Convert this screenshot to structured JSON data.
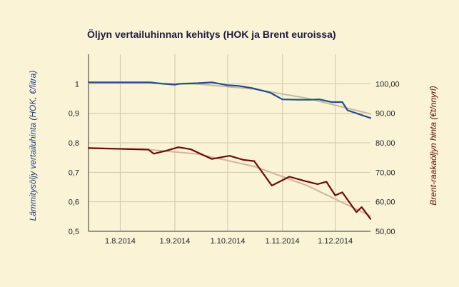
{
  "chart_data": {
    "type": "line",
    "title": "Öljyn vertailuhinnan kehitys (HOK ja Brent euroissa)",
    "x_axis": {
      "type": "date",
      "range": [
        "2014-07-14",
        "2014-12-21"
      ],
      "tick_labels": [
        "1.8.2014",
        "1.9.2014",
        "1.10.2014",
        "1.11.2014",
        "1.12.2014"
      ],
      "tick_dates": [
        "2014-08-01",
        "2014-09-01",
        "2014-10-01",
        "2014-11-01",
        "2014-12-01"
      ],
      "grid": true
    },
    "y_left": {
      "label": "Lämmitysöljy vertailuhinta (HOK, €/litra)",
      "ylim": [
        0.5,
        1.1
      ],
      "ticks": [
        0.5,
        0.6,
        0.7,
        0.8,
        0.9,
        1.0
      ],
      "tick_labels": [
        "0,5",
        "0,6",
        "0,7",
        "0,8",
        "0,9",
        "1"
      ]
    },
    "y_right": {
      "label": "Brent-raakaöljyn hinta (€t/nnyrl)",
      "ylim": [
        50,
        110
      ],
      "ticks": [
        50,
        60,
        70,
        80,
        90,
        100
      ],
      "tick_labels": [
        "50,00",
        "60,00",
        "70,00",
        "80,00",
        "90,00",
        "100,00"
      ]
    },
    "series": [
      {
        "axis": "left",
        "color": "#1f4e8c",
        "points": [
          [
            "2014-07-14",
            1.005
          ],
          [
            "2014-07-21",
            1.005
          ],
          [
            "2014-07-28",
            1.005
          ],
          [
            "2014-08-04",
            1.005
          ],
          [
            "2014-08-11",
            1.005
          ],
          [
            "2014-08-18",
            1.005
          ],
          [
            "2014-08-25",
            1.0
          ],
          [
            "2014-09-01",
            0.997
          ],
          [
            "2014-09-04",
            1.0
          ],
          [
            "2014-09-14",
            1.002
          ],
          [
            "2014-09-22",
            1.005
          ],
          [
            "2014-10-01",
            0.995
          ],
          [
            "2014-10-07",
            0.993
          ],
          [
            "2014-10-15",
            0.985
          ],
          [
            "2014-10-25",
            0.97
          ],
          [
            "2014-11-01",
            0.947
          ],
          [
            "2014-11-10",
            0.946
          ],
          [
            "2014-11-17",
            0.946
          ],
          [
            "2014-11-22",
            0.947
          ],
          [
            "2014-11-29",
            0.938
          ],
          [
            "2014-12-05",
            0.938
          ],
          [
            "2014-12-08",
            0.91
          ],
          [
            "2014-12-21",
            0.884
          ]
        ]
      },
      {
        "axis": "right",
        "color": "#6b0a0a",
        "points": [
          [
            "2014-07-14",
            78.2
          ],
          [
            "2014-07-28",
            78.0
          ],
          [
            "2014-08-11",
            77.8
          ],
          [
            "2014-08-17",
            77.7
          ],
          [
            "2014-08-20",
            76.3
          ],
          [
            "2014-08-27",
            77.3
          ],
          [
            "2014-09-03",
            78.5
          ],
          [
            "2014-09-10",
            77.8
          ],
          [
            "2014-09-22",
            74.5
          ],
          [
            "2014-10-02",
            75.6
          ],
          [
            "2014-10-10",
            74.2
          ],
          [
            "2014-10-16",
            73.8
          ],
          [
            "2014-10-26",
            65.5
          ],
          [
            "2014-11-05",
            68.5
          ],
          [
            "2014-11-14",
            67.0
          ],
          [
            "2014-11-21",
            66.0
          ],
          [
            "2014-11-26",
            66.8
          ],
          [
            "2014-12-01",
            62.2
          ],
          [
            "2014-12-05",
            63.2
          ],
          [
            "2014-12-13",
            56.5
          ],
          [
            "2014-12-16",
            58.2
          ],
          [
            "2014-12-21",
            54.2
          ]
        ]
      },
      {
        "axis": "left",
        "kind": "trendline",
        "color": "#c9b8a2",
        "points": [
          [
            "2014-07-14",
            1.002
          ],
          [
            "2014-08-17",
            1.002
          ],
          [
            "2014-09-14",
            0.999
          ],
          [
            "2014-10-16",
            0.982
          ],
          [
            "2014-11-15",
            0.951
          ],
          [
            "2014-12-21",
            0.898
          ]
        ]
      },
      {
        "axis": "right",
        "kind": "trendline",
        "color": "#d3b39a",
        "points": [
          [
            "2014-07-14",
            78.3
          ],
          [
            "2014-08-17",
            77.7
          ],
          [
            "2014-09-14",
            76.2
          ],
          [
            "2014-10-16",
            72.0
          ],
          [
            "2014-11-15",
            65.5
          ],
          [
            "2014-12-21",
            55.2
          ]
        ]
      }
    ]
  }
}
